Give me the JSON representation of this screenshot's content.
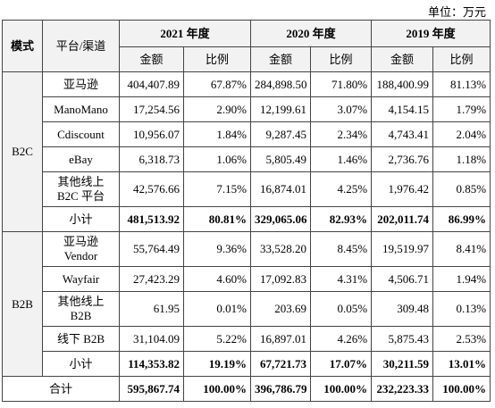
{
  "unit": "单位：万元",
  "header": {
    "mode": "模式",
    "channel": "平台/渠道",
    "years": [
      "2021 年度",
      "2020 年度",
      "2019 年度"
    ],
    "amount": "金额",
    "ratio": "比例"
  },
  "groups": [
    {
      "mode": "B2C",
      "rows": [
        {
          "channel": "亚马逊",
          "cells": [
            "404,407.89",
            "67.87%",
            "284,898.50",
            "71.80%",
            "188,400.99",
            "81.13%"
          ]
        },
        {
          "channel": "ManoMano",
          "cells": [
            "17,254.56",
            "2.90%",
            "12,199.61",
            "3.07%",
            "4,154.15",
            "1.79%"
          ]
        },
        {
          "channel": "Cdiscount",
          "cells": [
            "10,956.07",
            "1.84%",
            "9,287.45",
            "2.34%",
            "4,743.41",
            "2.04%"
          ]
        },
        {
          "channel": "eBay",
          "cells": [
            "6,318.73",
            "1.06%",
            "5,805.49",
            "1.46%",
            "2,736.76",
            "1.18%"
          ]
        },
        {
          "channel": "其他线上\nB2C 平台",
          "cells": [
            "42,576.66",
            "7.15%",
            "16,874.01",
            "4.25%",
            "1,976.42",
            "0.85%"
          ]
        }
      ],
      "subtotal": {
        "label": "小计",
        "cells": [
          "481,513.92",
          "80.81%",
          "329,065.06",
          "82.93%",
          "202,011.74",
          "86.99%"
        ]
      }
    },
    {
      "mode": "B2B",
      "rows": [
        {
          "channel": "亚马逊\nVendor",
          "cells": [
            "55,764.49",
            "9.36%",
            "33,528.20",
            "8.45%",
            "19,519.97",
            "8.41%"
          ]
        },
        {
          "channel": "Wayfair",
          "cells": [
            "27,423.29",
            "4.60%",
            "17,092.83",
            "4.31%",
            "4,506.71",
            "1.94%"
          ]
        },
        {
          "channel": "其他线上\nB2B",
          "cells": [
            "61.95",
            "0.01%",
            "203.69",
            "0.05%",
            "309.48",
            "0.13%"
          ]
        },
        {
          "channel": "线下 B2B",
          "cells": [
            "31,104.09",
            "5.22%",
            "16,897.01",
            "4.26%",
            "5,875.43",
            "2.53%"
          ]
        }
      ],
      "subtotal": {
        "label": "小计",
        "cells": [
          "114,353.82",
          "19.19%",
          "67,721.73",
          "17.07%",
          "30,211.59",
          "13.01%"
        ]
      }
    }
  ],
  "total": {
    "label": "合计",
    "cells": [
      "595,867.74",
      "100.00%",
      "396,786.79",
      "100.00%",
      "232,223.33",
      "100.00%"
    ]
  }
}
